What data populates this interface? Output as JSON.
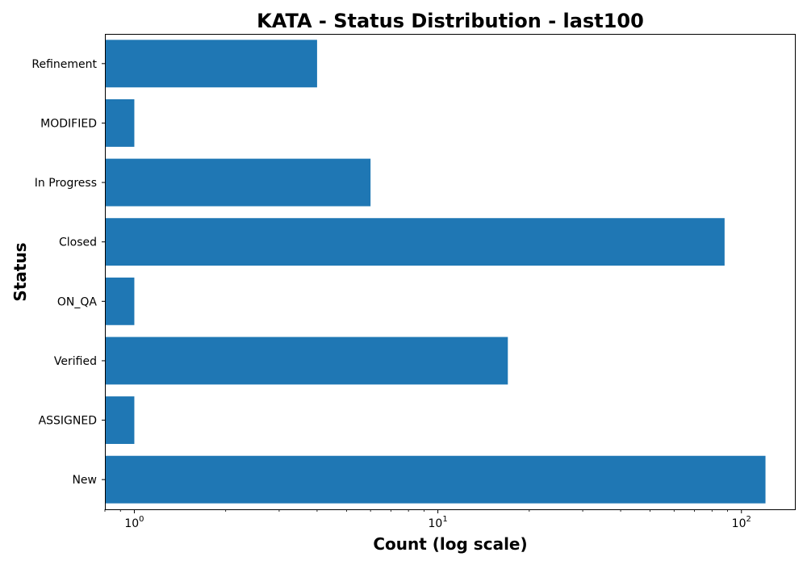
{
  "chart_data": {
    "type": "bar",
    "orientation": "horizontal",
    "title": "KATA - Status Distribution - last100",
    "xlabel": "Count (log scale)",
    "ylabel": "Status",
    "x_scale": "log",
    "xlim": [
      0.8,
      150
    ],
    "x_ticks": [
      {
        "value": 1,
        "base": "10",
        "exponent": "0"
      },
      {
        "value": 10,
        "base": "10",
        "exponent": "1"
      },
      {
        "value": 100,
        "base": "10",
        "exponent": "2"
      }
    ],
    "grid": false,
    "categories": [
      "New",
      "ASSIGNED",
      "Verified",
      "ON_QA",
      "Closed",
      "In Progress",
      "MODIFIED",
      "Refinement"
    ],
    "values": [
      120,
      1,
      17,
      1,
      88,
      6,
      1,
      4
    ],
    "color": "#1f77b4"
  }
}
